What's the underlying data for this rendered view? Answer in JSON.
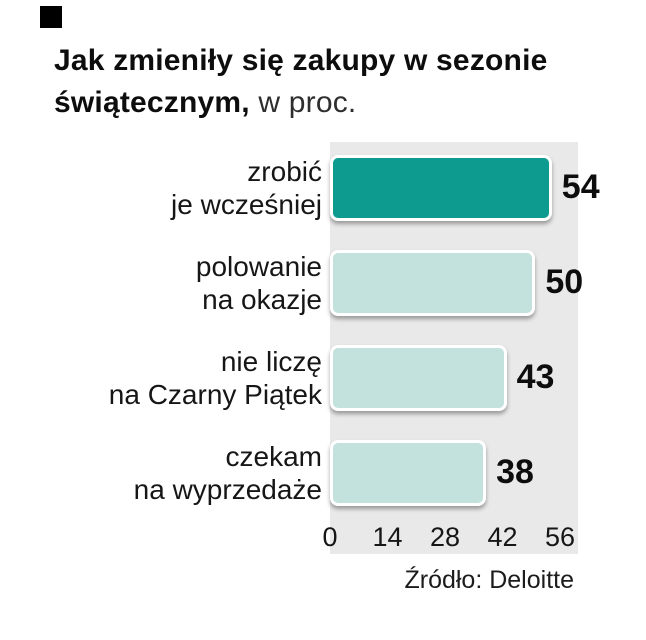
{
  "page": {
    "title_bold": "Jak zmieniły się zakupy w sezonie świątecznym,",
    "title_suffix": " w proc.",
    "source": "Źródło: Deloitte"
  },
  "chart_data": {
    "type": "bar",
    "orientation": "horizontal",
    "title": "Jak zmieniły się zakupy w sezonie świątecznym, w proc.",
    "categories": [
      "zrobić\nje wcześniej",
      "polowanie\nna okazje",
      "nie liczę\nna Czarny Piątek",
      "czekam\nna wyprzedaże"
    ],
    "values": [
      54,
      50,
      43,
      38
    ],
    "value_labels": [
      "54",
      "50",
      "43",
      "38"
    ],
    "x_ticks": [
      "0",
      "14",
      "28",
      "42",
      "56"
    ],
    "x_tick_values": [
      0,
      14,
      28,
      42,
      56
    ],
    "xlim": [
      0,
      56
    ],
    "bar_colors": [
      "#0d9b8f",
      "#c3e2de",
      "#c3e2de",
      "#c3e2de"
    ],
    "plot_bg": "#e9e9e9",
    "grid": false,
    "legend": false,
    "source": "Źródło: Deloitte"
  }
}
